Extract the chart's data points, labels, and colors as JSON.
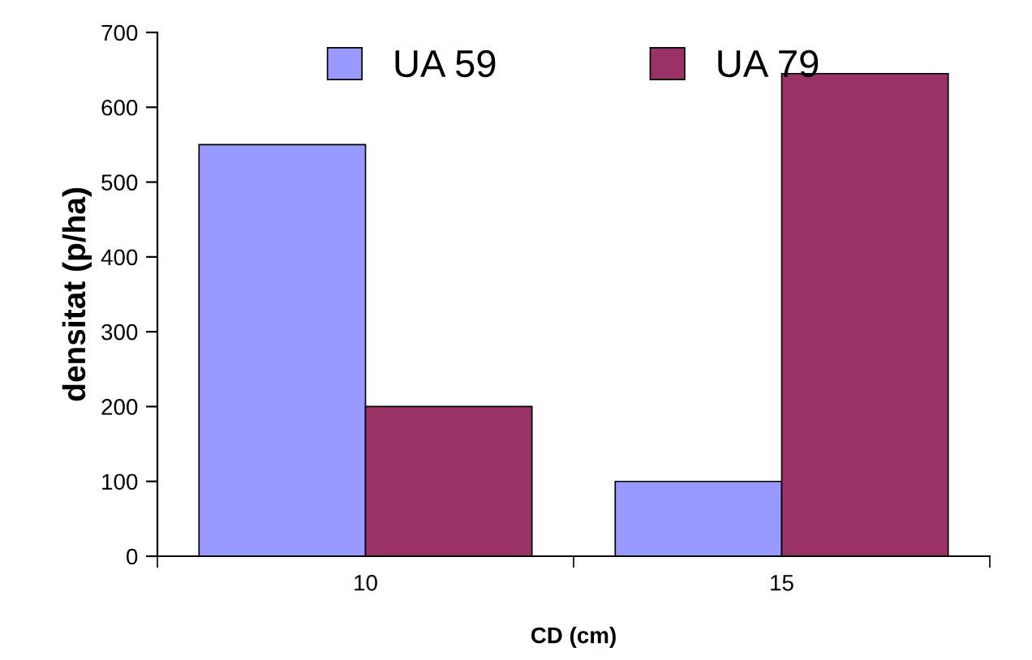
{
  "chart_data": {
    "type": "bar",
    "xlabel": "CD (cm)",
    "ylabel": "densitat (p/ha)",
    "categories": [
      "10",
      "15"
    ],
    "series": [
      {
        "name": "UA 59",
        "color": "#9999ff",
        "values": [
          550,
          100
        ]
      },
      {
        "name": "UA 79",
        "color": "#993366",
        "values": [
          200,
          645
        ]
      }
    ],
    "ylim": [
      0,
      700
    ],
    "yticks": [
      0,
      100,
      200,
      300,
      400,
      500,
      600,
      700
    ],
    "grid": false,
    "legend": "top"
  }
}
